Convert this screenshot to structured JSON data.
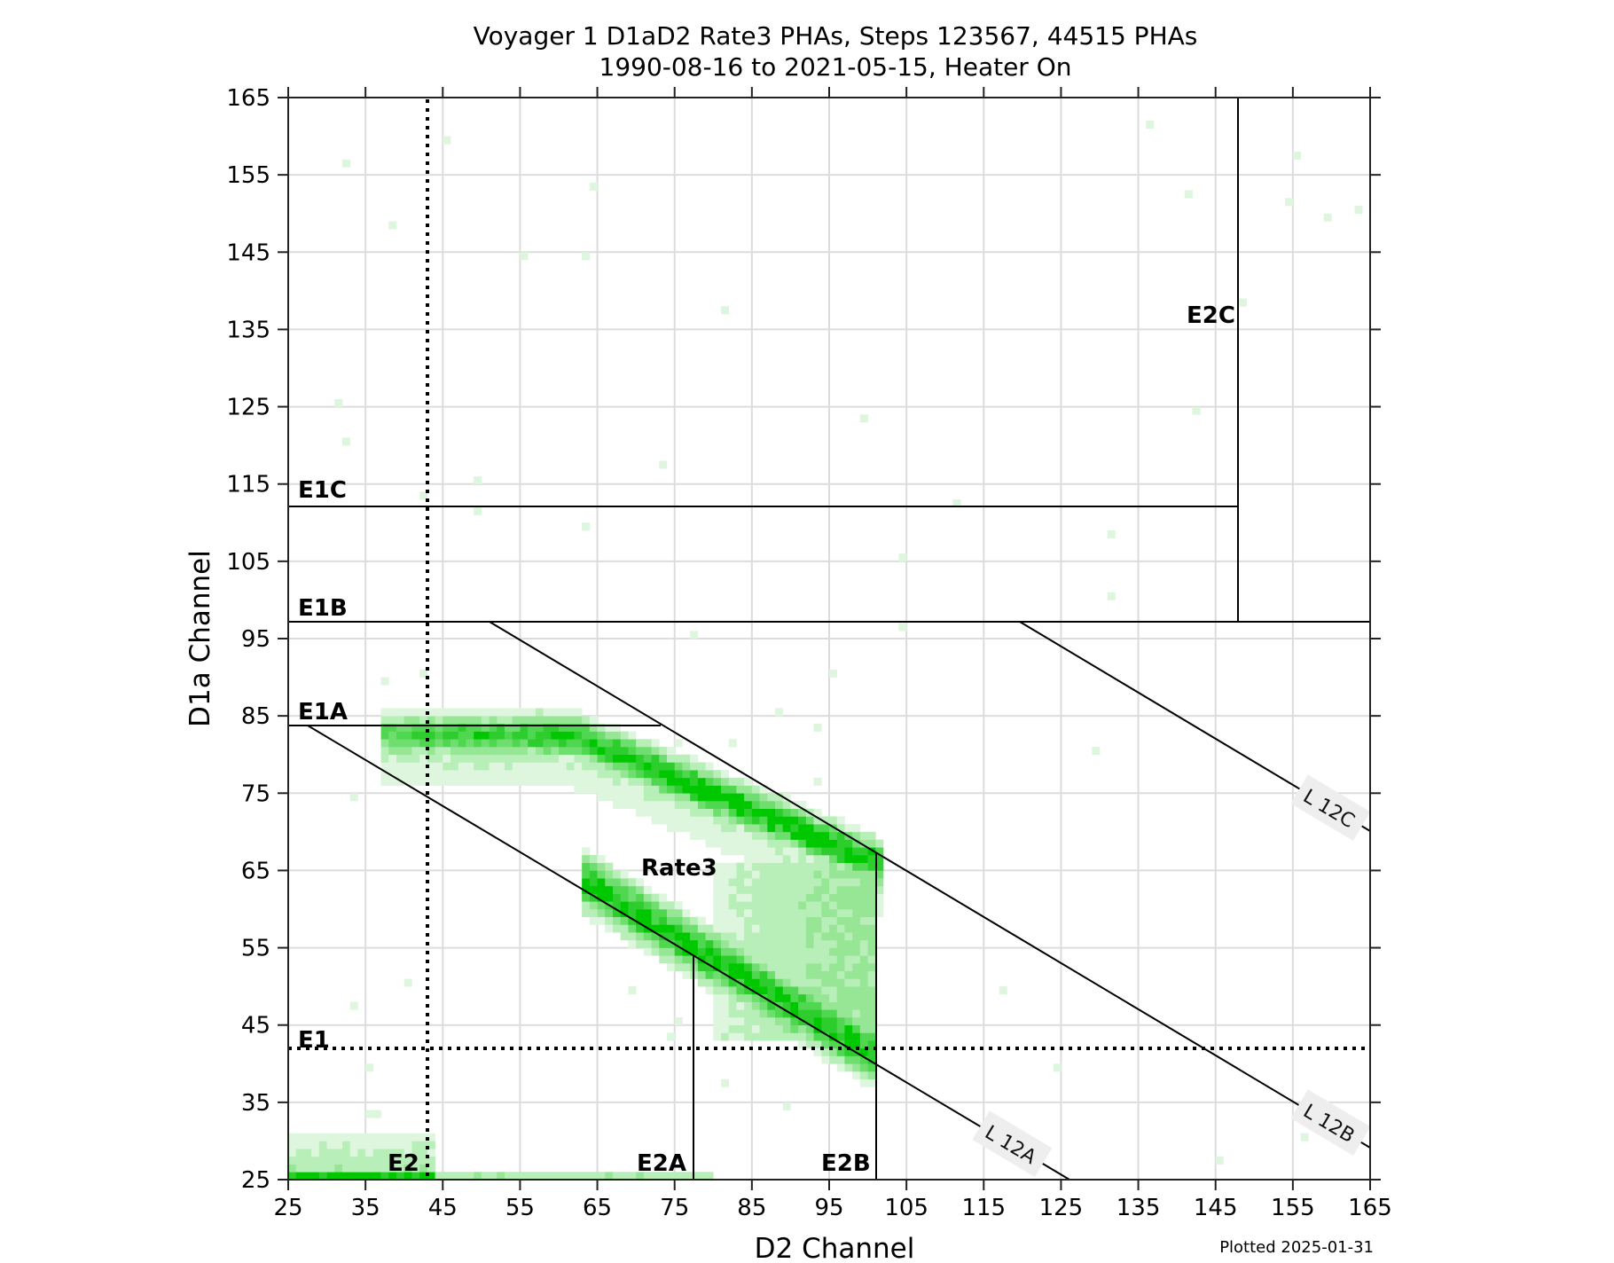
{
  "chart_data": {
    "type": "heatmap",
    "title": "Voyager 1 D1aD2 Rate3 PHAs, Steps 123567, 44515 PHAs",
    "subtitle": "1990-08-16 to 2021-05-15, Heater On",
    "xlabel": "D2 Channel",
    "ylabel": "D1a Channel",
    "xlim": [
      25,
      165
    ],
    "ylim": [
      25,
      165
    ],
    "xticks": [
      25,
      35,
      45,
      55,
      65,
      75,
      85,
      95,
      105,
      115,
      125,
      135,
      145,
      155,
      165
    ],
    "yticks": [
      25,
      35,
      45,
      55,
      65,
      75,
      85,
      95,
      105,
      115,
      125,
      135,
      145,
      155,
      165
    ],
    "grid": true,
    "colormap": "white-to-green",
    "color_max": "#00c800",
    "total_phas": 44515,
    "steps": "123567",
    "footer": "Plotted 2025-01-31",
    "thresholds": {
      "E1": {
        "axis": "y",
        "value": 42,
        "style": "dotted"
      },
      "E2": {
        "axis": "x",
        "value": 43,
        "style": "dotted"
      },
      "E1A": {
        "axis": "y",
        "value": 84
      },
      "E1B": {
        "axis": "y",
        "value": 97.3
      },
      "E1C": {
        "axis": "y",
        "value": 112.7
      },
      "E2A": {
        "axis": "x",
        "value": 77.4
      },
      "E2B": {
        "axis": "x",
        "value": 101.1
      },
      "E2C": {
        "axis": "x",
        "value": 148
      }
    },
    "diagonal_lines": [
      {
        "name": "L 12A",
        "from": [
          27.5,
          84
        ],
        "to": [
          126,
          25
        ]
      },
      {
        "name": "L 12B",
        "from": [
          51,
          97.3
        ],
        "to": [
          165,
          29
        ]
      },
      {
        "name": "L 12C",
        "from": [
          119.5,
          97.3
        ],
        "to": [
          165,
          70
        ]
      }
    ],
    "region_labels": [
      "E1C",
      "E1B",
      "E1A",
      "E1",
      "E2",
      "E2A",
      "E2B",
      "E2C",
      "Rate3"
    ],
    "density_regions": [
      {
        "name": "upper band (E1A, along L12B)",
        "points": [
          [
            40,
            84
          ],
          [
            60,
            83
          ],
          [
            75,
            81
          ],
          [
            85,
            77
          ],
          [
            95,
            71
          ],
          [
            101,
            67
          ]
        ],
        "peak": "dense"
      },
      {
        "name": "lower band (along L12A to E1)",
        "points": [
          [
            65,
            60
          ],
          [
            75,
            56
          ],
          [
            85,
            49
          ],
          [
            92,
            44
          ],
          [
            100,
            43
          ]
        ],
        "peak": "dense"
      },
      {
        "name": "E2 low strip",
        "points": [
          [
            25,
            25
          ],
          [
            43,
            25
          ],
          [
            70,
            25
          ]
        ],
        "peak": "dense at D2 30-35"
      }
    ]
  },
  "labels": {
    "E1C": "E1C",
    "E1B": "E1B",
    "E1A": "E1A",
    "E1": "E1",
    "E2": "E2",
    "E2A": "E2A",
    "E2B": "E2B",
    "E2C": "E2C",
    "Rate3": "Rate3",
    "L12A": "L 12A",
    "L12B": "L 12B",
    "L12C": "L 12C"
  }
}
